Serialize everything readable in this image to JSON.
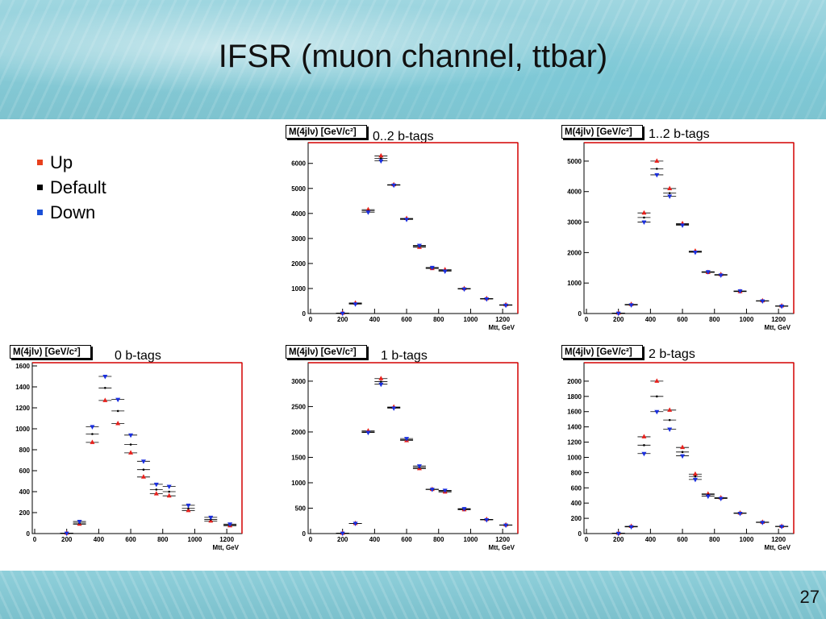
{
  "slide": {
    "title": "IFSR (muon channel, ttbar)",
    "page_number": "27",
    "legend": [
      {
        "label": "Up",
        "color": "#e8401c"
      },
      {
        "label": "Default",
        "color": "#000000"
      },
      {
        "label": "Down",
        "color": "#1a4fd6"
      }
    ]
  },
  "colors": {
    "up": "#e8201c",
    "default": "#000000",
    "down": "#1a2fe0",
    "frame": "#d40000"
  },
  "chart_data": [
    {
      "type": "scatter",
      "id": "p02",
      "stat_title": "M(4jlν) [GeV/c²]",
      "label": "0..2 b-tags",
      "xlabel": "Mtt, GeV",
      "xlim": [
        0,
        1280
      ],
      "ylim": [
        0,
        6700
      ],
      "xticks": [
        0,
        200,
        400,
        600,
        800,
        1000,
        1200
      ],
      "yticks": [
        0,
        1000,
        2000,
        3000,
        4000,
        5000,
        6000
      ],
      "x": [
        200,
        280,
        360,
        440,
        520,
        600,
        680,
        760,
        840,
        960,
        1100,
        1220
      ],
      "series": [
        {
          "key": "up",
          "values": [
            20,
            420,
            4150,
            6300,
            5150,
            3800,
            2650,
            1800,
            1750,
            1000,
            600,
            350
          ]
        },
        {
          "key": "default",
          "values": [
            15,
            400,
            4100,
            6200,
            5140,
            3780,
            2680,
            1820,
            1720,
            990,
            590,
            340
          ]
        },
        {
          "key": "down",
          "values": [
            10,
            380,
            4050,
            6100,
            5130,
            3760,
            2720,
            1840,
            1690,
            980,
            580,
            330
          ]
        }
      ]
    },
    {
      "type": "scatter",
      "id": "p12",
      "stat_title": "M(4jlν) [GeV/c²]",
      "label": "1..2 b-tags",
      "xlabel": "Mtt, GeV",
      "xlim": [
        0,
        1280
      ],
      "ylim": [
        0,
        5500
      ],
      "xticks": [
        0,
        200,
        400,
        600,
        800,
        1000,
        1200
      ],
      "yticks": [
        0,
        1000,
        2000,
        3000,
        4000,
        5000
      ],
      "x": [
        200,
        280,
        360,
        440,
        520,
        600,
        680,
        760,
        840,
        960,
        1100,
        1220
      ],
      "series": [
        {
          "key": "up",
          "values": [
            15,
            300,
            3300,
            5000,
            4100,
            2950,
            2050,
            1350,
            1280,
            720,
            420,
            250
          ]
        },
        {
          "key": "default",
          "values": [
            12,
            290,
            3150,
            4750,
            3950,
            2920,
            2030,
            1360,
            1270,
            730,
            415,
            245
          ]
        },
        {
          "key": "down",
          "values": [
            10,
            280,
            3000,
            4550,
            3850,
            2900,
            2010,
            1370,
            1260,
            740,
            410,
            240
          ]
        }
      ]
    },
    {
      "type": "scatter",
      "id": "p0",
      "stat_title": "M(4jlν) [GeV/c²]",
      "label": "0 b-tags",
      "xlabel": "Mtt, GeV",
      "xlim": [
        0,
        1280
      ],
      "ylim": [
        0,
        1600
      ],
      "xticks": [
        0,
        200,
        400,
        600,
        800,
        1000,
        1200
      ],
      "yticks": [
        0,
        200,
        400,
        600,
        800,
        1000,
        1200,
        1400,
        1600
      ],
      "x": [
        200,
        280,
        360,
        440,
        520,
        600,
        680,
        760,
        840,
        960,
        1100,
        1220
      ],
      "series": [
        {
          "key": "up",
          "values": [
            5,
            90,
            870,
            1270,
            1050,
            770,
            540,
            380,
            360,
            220,
            120,
            75
          ]
        },
        {
          "key": "default",
          "values": [
            4,
            100,
            950,
            1390,
            1170,
            850,
            610,
            420,
            400,
            240,
            135,
            82
          ]
        },
        {
          "key": "down",
          "values": [
            3,
            115,
            1020,
            1500,
            1280,
            940,
            690,
            470,
            450,
            270,
            155,
            90
          ]
        }
      ]
    },
    {
      "type": "scatter",
      "id": "p1",
      "stat_title": "M(4jlν) [GeV/c²]",
      "label": "1 b-tags",
      "xlabel": "Mtt, GeV",
      "xlim": [
        0,
        1280
      ],
      "ylim": [
        0,
        3300
      ],
      "xticks": [
        0,
        200,
        400,
        600,
        800,
        1000,
        1200
      ],
      "yticks": [
        0,
        500,
        1000,
        1500,
        2000,
        2500,
        3000
      ],
      "x": [
        200,
        280,
        360,
        440,
        520,
        600,
        680,
        760,
        840,
        960,
        1100,
        1220
      ],
      "series": [
        {
          "key": "up",
          "values": [
            8,
            200,
            2020,
            3050,
            2490,
            1830,
            1280,
            870,
            820,
            470,
            280,
            170
          ]
        },
        {
          "key": "default",
          "values": [
            7,
            200,
            2000,
            2990,
            2480,
            1850,
            1300,
            870,
            840,
            480,
            275,
            168
          ]
        },
        {
          "key": "down",
          "values": [
            6,
            200,
            1990,
            2940,
            2470,
            1870,
            1330,
            870,
            850,
            490,
            270,
            165
          ]
        }
      ]
    },
    {
      "type": "scatter",
      "id": "p2",
      "stat_title": "M(4jlν) [GeV/c²]",
      "label": "2 b-tags",
      "xlabel": "Mtt, GeV",
      "xlim": [
        0,
        1280
      ],
      "ylim": [
        0,
        2200
      ],
      "xticks": [
        0,
        200,
        400,
        600,
        800,
        1000,
        1200
      ],
      "yticks": [
        0,
        200,
        400,
        600,
        800,
        1000,
        1200,
        1400,
        1600,
        1800,
        2000
      ],
      "x": [
        200,
        280,
        360,
        440,
        520,
        600,
        680,
        760,
        840,
        960,
        1100,
        1220
      ],
      "series": [
        {
          "key": "up",
          "values": [
            5,
            95,
            1270,
            2000,
            1620,
            1130,
            780,
            520,
            470,
            270,
            150,
            95
          ]
        },
        {
          "key": "default",
          "values": [
            4,
            90,
            1160,
            1800,
            1490,
            1070,
            750,
            510,
            465,
            268,
            148,
            93
          ]
        },
        {
          "key": "down",
          "values": [
            3,
            88,
            1050,
            1600,
            1370,
            1020,
            710,
            490,
            460,
            265,
            146,
            92
          ]
        }
      ]
    }
  ]
}
